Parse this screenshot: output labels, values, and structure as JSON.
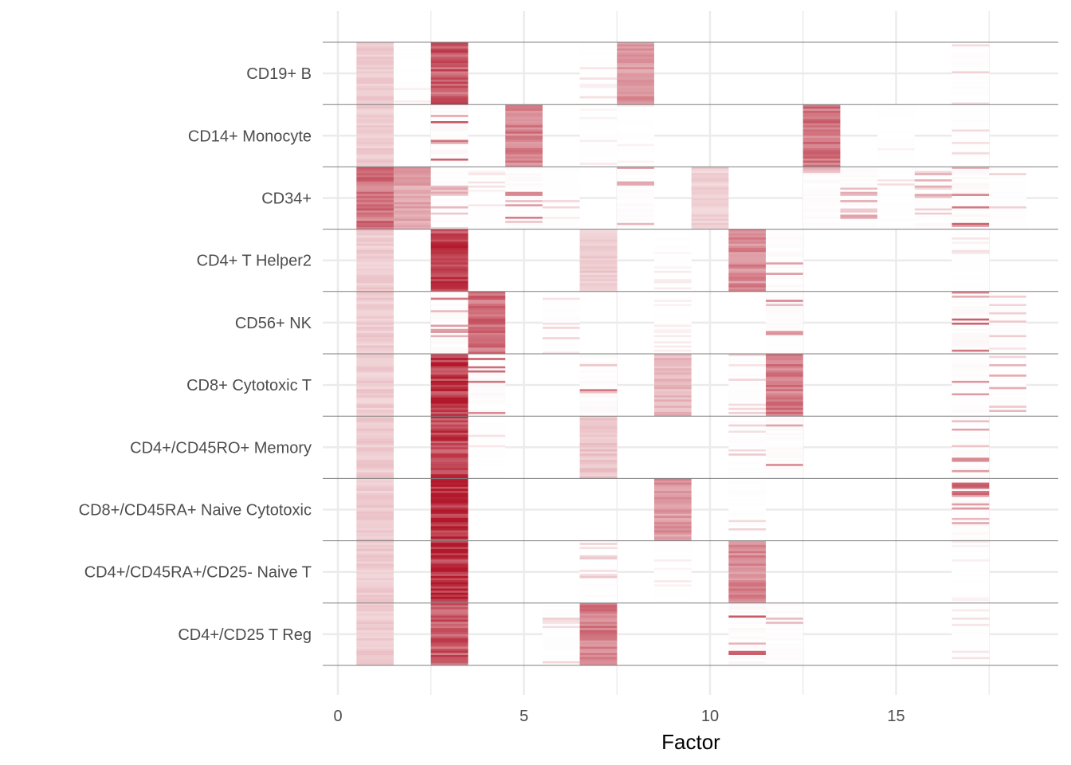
{
  "chart_data": {
    "type": "heatmap",
    "title": "",
    "xlabel": "Factor",
    "ylabel": "",
    "xlim": [
      -0.4,
      19.4
    ],
    "x_ticks": [
      "0",
      "5",
      "10",
      "15"
    ],
    "grid": true,
    "colors": {
      "high": "#b2182b",
      "low": "#ffffff",
      "grid": "#ebebeb",
      "separator": "#7f7f7f"
    },
    "cell_types": [
      "CD19+ B",
      "CD14+ Monocyte",
      "CD34+",
      "CD4+ T Helper2",
      "CD56+ NK",
      "CD8+ Cytotoxic T",
      "CD4+/CD45RO+ Memory",
      "CD8+/CD45RA+ Naive Cytotoxic",
      "CD4+/CD45RA+/CD25- Naive T",
      "CD4+/CD25 T Reg"
    ],
    "factors": [
      1,
      2,
      3,
      4,
      5,
      6,
      7,
      8,
      9,
      10,
      11,
      12,
      13,
      14,
      15,
      16,
      17,
      18
    ],
    "mean_loadings": [
      [
        0.22,
        0.02,
        0.7,
        0.0,
        0.0,
        0.0,
        0.03,
        0.45,
        0.0,
        0.0,
        0.0,
        0.0,
        0.0,
        0.0,
        0.0,
        0.0,
        0.05,
        0.0
      ],
      [
        0.22,
        0.0,
        0.15,
        0.0,
        0.55,
        0.0,
        0.02,
        0.02,
        0.0,
        0.0,
        0.0,
        0.0,
        0.6,
        0.0,
        0.02,
        0.0,
        0.04,
        0.0
      ],
      [
        0.6,
        0.4,
        0.08,
        0.03,
        0.12,
        0.04,
        0.0,
        0.1,
        0.0,
        0.2,
        0.0,
        0.0,
        0.1,
        0.1,
        0.03,
        0.08,
        0.15,
        0.05
      ],
      [
        0.22,
        0.0,
        0.8,
        0.0,
        0.0,
        0.0,
        0.22,
        0.0,
        0.02,
        0.0,
        0.5,
        0.1,
        0.0,
        0.0,
        0.0,
        0.0,
        0.03,
        0.0
      ],
      [
        0.22,
        0.0,
        0.12,
        0.62,
        0.0,
        0.04,
        0.0,
        0.0,
        0.02,
        0.0,
        0.0,
        0.12,
        0.0,
        0.0,
        0.0,
        0.0,
        0.15,
        0.06
      ],
      [
        0.22,
        0.0,
        0.85,
        0.15,
        0.0,
        0.0,
        0.12,
        0.0,
        0.3,
        0.0,
        0.05,
        0.55,
        0.0,
        0.0,
        0.0,
        0.0,
        0.1,
        0.08
      ],
      [
        0.22,
        0.0,
        0.8,
        0.03,
        0.0,
        0.0,
        0.25,
        0.0,
        0.0,
        0.0,
        0.05,
        0.12,
        0.0,
        0.0,
        0.0,
        0.0,
        0.12,
        0.0
      ],
      [
        0.22,
        0.0,
        0.95,
        0.0,
        0.0,
        0.0,
        0.0,
        0.0,
        0.45,
        0.0,
        0.04,
        0.0,
        0.0,
        0.0,
        0.0,
        0.0,
        0.15,
        0.0
      ],
      [
        0.22,
        0.0,
        0.9,
        0.0,
        0.0,
        0.0,
        0.05,
        0.0,
        0.02,
        0.0,
        0.5,
        0.0,
        0.0,
        0.0,
        0.0,
        0.0,
        0.02,
        0.0
      ],
      [
        0.22,
        0.0,
        0.7,
        0.0,
        0.0,
        0.05,
        0.55,
        0.0,
        0.0,
        0.0,
        0.15,
        0.1,
        0.0,
        0.0,
        0.0,
        0.0,
        0.03,
        0.0
      ]
    ]
  }
}
